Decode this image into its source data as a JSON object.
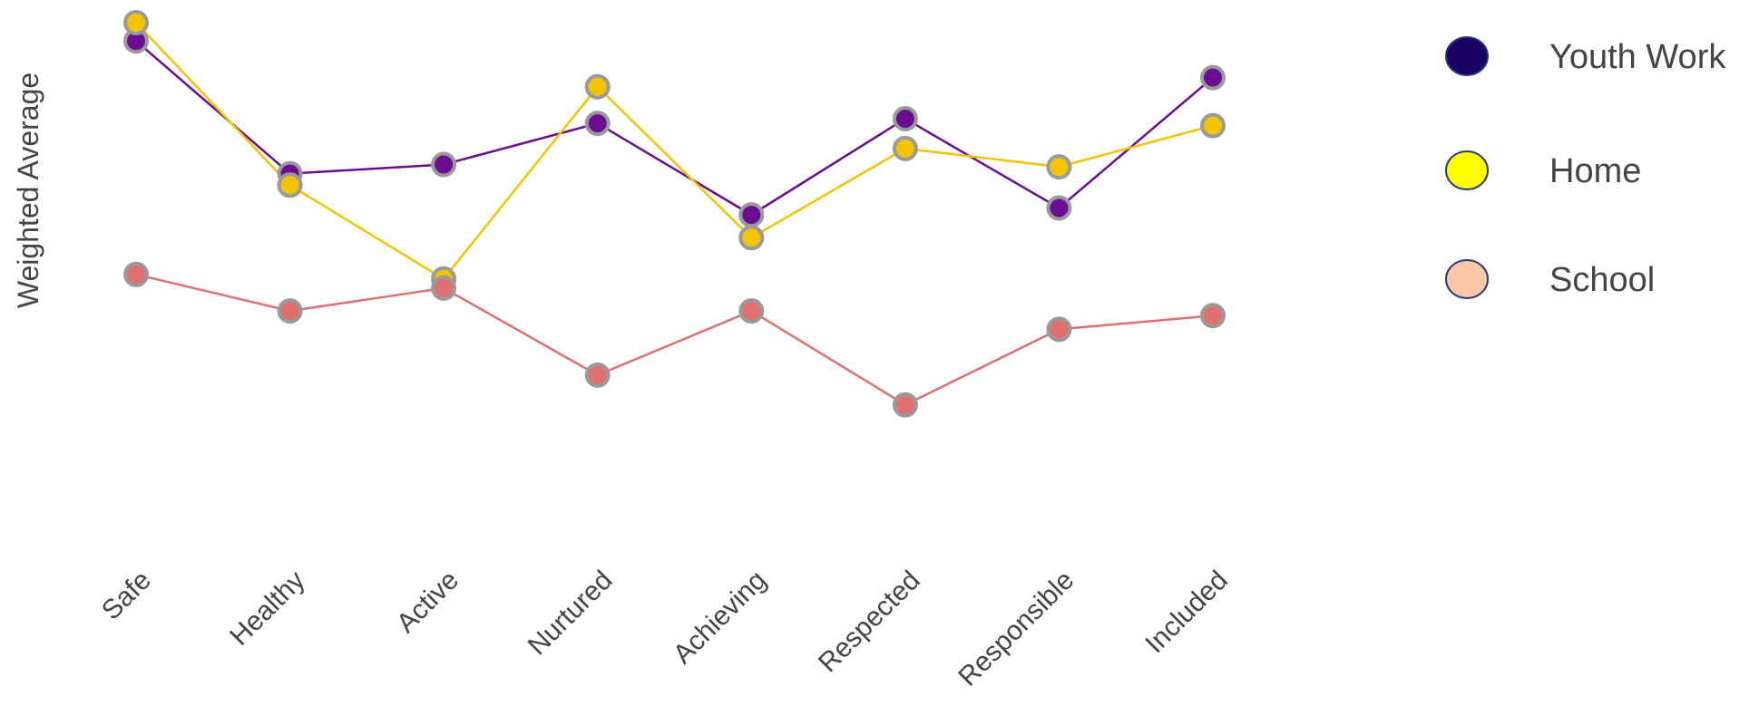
{
  "chart_data": {
    "type": "line",
    "title": "",
    "xlabel": "",
    "ylabel": "Weighted Average",
    "ylim": [
      0,
      10
    ],
    "grid": false,
    "legend_position": "right",
    "categories": [
      "Safe",
      "Healthy",
      "Active",
      "Nurtured",
      "Achieving",
      "Respected",
      "Responsible",
      "Included"
    ],
    "series": [
      {
        "name": "Youth Work",
        "color": "#6a0d91",
        "legend_color": "#1a0060",
        "values": [
          9.6,
          6.7,
          6.9,
          7.8,
          5.8,
          7.9,
          5.95,
          8.8
        ]
      },
      {
        "name": "Home",
        "color": "#f5c400",
        "legend_color": "#ffff00",
        "values": [
          10.0,
          6.45,
          4.4,
          8.6,
          5.3,
          7.25,
          6.85,
          7.75
        ]
      },
      {
        "name": "School",
        "color": "#e07070",
        "legend_color": "#f8c8a8",
        "values": [
          4.5,
          3.7,
          4.2,
          2.3,
          3.7,
          1.65,
          3.3,
          3.6
        ]
      }
    ]
  }
}
